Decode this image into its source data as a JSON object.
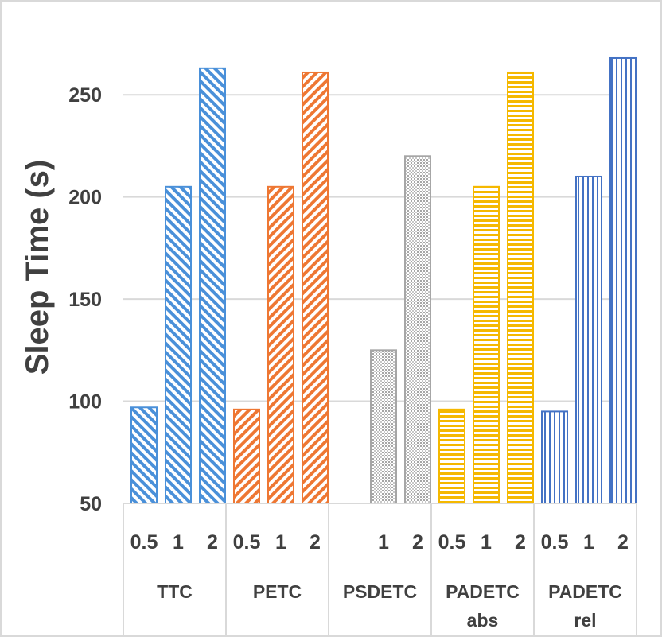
{
  "chart_data": {
    "type": "bar",
    "title": "",
    "xlabel": "",
    "ylabel": "Sleep Time (s)",
    "ylim": [
      50,
      275
    ],
    "yticks": [
      50,
      100,
      150,
      200,
      250
    ],
    "grid": true,
    "groups": [
      {
        "name": "TTC",
        "label_lines": [
          "TTC"
        ],
        "color": "#4a90d9",
        "pattern": "diag-left",
        "bars": [
          {
            "category": "0.5",
            "value": 97
          },
          {
            "category": "1",
            "value": 205
          },
          {
            "category": "2",
            "value": 263
          }
        ]
      },
      {
        "name": "PETC",
        "label_lines": [
          "PETC"
        ],
        "color": "#ee7733",
        "pattern": "diag-right",
        "bars": [
          {
            "category": "0.5",
            "value": 96
          },
          {
            "category": "1",
            "value": 205
          },
          {
            "category": "2",
            "value": 261
          }
        ]
      },
      {
        "name": "PSDETC",
        "label_lines": [
          "PSDETC"
        ],
        "color": "#a6a6a6",
        "pattern": "dots",
        "bars": [
          {
            "category": "1",
            "value": 125
          },
          {
            "category": "2",
            "value": 220
          }
        ]
      },
      {
        "name": "PADETC abs",
        "label_lines": [
          "PADETC",
          "abs"
        ],
        "color": "#f5b800",
        "pattern": "horizontal",
        "bars": [
          {
            "category": "0.5",
            "value": 96
          },
          {
            "category": "1",
            "value": 205
          },
          {
            "category": "2",
            "value": 261
          }
        ]
      },
      {
        "name": "PADETC rel",
        "label_lines": [
          "PADETC",
          "rel"
        ],
        "color": "#4472c4",
        "pattern": "vertical",
        "bars": [
          {
            "category": "0.5",
            "value": 95
          },
          {
            "category": "1",
            "value": 210
          },
          {
            "category": "2",
            "value": 268
          }
        ]
      }
    ]
  }
}
